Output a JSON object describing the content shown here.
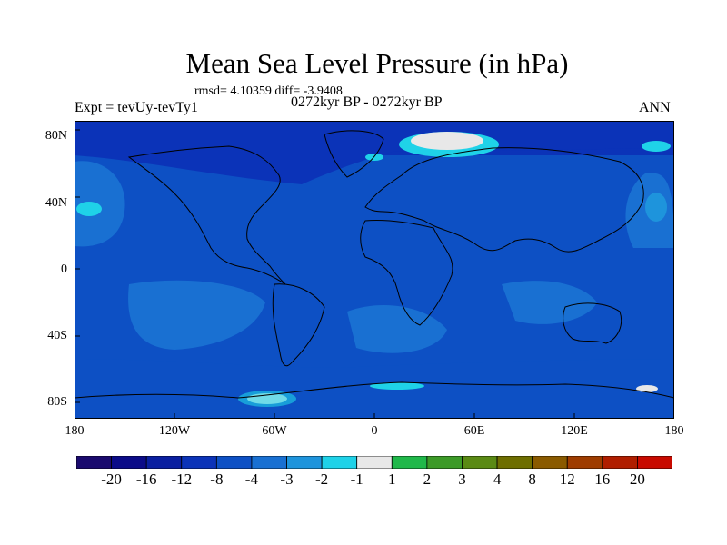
{
  "title": "Mean Sea Level Pressure (in hPa)",
  "stats": "rmsd= 4.10359 diff= -3.9408",
  "subtitle": "0272kyr BP - 0272kyr BP",
  "left_label": "Expt = tevUy-tevTy1",
  "right_label": "ANN",
  "y_ticks": [
    "80N",
    "40N",
    "0",
    "40S",
    "80S"
  ],
  "x_ticks": [
    "180",
    "120W",
    "60W",
    "0",
    "60E",
    "120E",
    "180"
  ],
  "colorbar": {
    "colors": [
      "#1a0a6e",
      "#0b0b88",
      "#0a1fa0",
      "#0b33b8",
      "#0d50c4",
      "#1970d2",
      "#1e94dc",
      "#1fd2e8",
      "#e8e8e8",
      "#20b84a",
      "#3c9a28",
      "#5a8a14",
      "#6e6e00",
      "#8a5a00",
      "#9e3c00",
      "#b01e00",
      "#c80a00"
    ],
    "labels": [
      "-20",
      "-16",
      "-12",
      "-8",
      "-4",
      "-3",
      "-2",
      "-1",
      "1",
      "2",
      "3",
      "4",
      "8",
      "12",
      "16",
      "20"
    ]
  },
  "map_colors": {
    "background": "#0d50c4",
    "deep": "#0b33b8",
    "lighter": "#1970d2",
    "light": "#1e94dc",
    "cyan": "#1fd2e8",
    "white": "#e8e8e8"
  }
}
